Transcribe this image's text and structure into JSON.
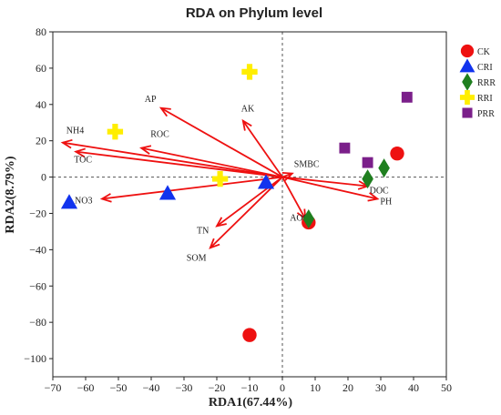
{
  "chart_data": {
    "type": "scatter",
    "title": "RDA on Phylum level",
    "xlabel": "RDA1(67.44%)",
    "ylabel": "RDA2(8.79%)",
    "xlim": [
      -70,
      50
    ],
    "ylim": [
      -110,
      80
    ],
    "xticks": [
      -70,
      -60,
      -50,
      -40,
      -30,
      -20,
      -10,
      0,
      10,
      20,
      30,
      40,
      50
    ],
    "yticks": [
      80,
      60,
      40,
      20,
      0,
      -20,
      -40,
      -60,
      -80,
      -100
    ],
    "reference_lines": {
      "x": 0,
      "y": 0,
      "style": "dashed"
    },
    "legend_position": "right",
    "series": [
      {
        "name": "CK",
        "marker": "circle",
        "color": "#ee1111",
        "points": [
          [
            35,
            13
          ],
          [
            8,
            -25
          ],
          [
            -10,
            -87
          ]
        ]
      },
      {
        "name": "CRI",
        "marker": "triangle",
        "color": "#1133ee",
        "points": [
          [
            -65,
            -14
          ],
          [
            -35,
            -9
          ],
          [
            -5,
            -3
          ]
        ]
      },
      {
        "name": "RRR",
        "marker": "diamond",
        "color": "#1f7f1f",
        "points": [
          [
            31,
            5
          ],
          [
            26,
            -1
          ],
          [
            8,
            -23
          ]
        ]
      },
      {
        "name": "RRI",
        "marker": "cross",
        "color": "#ffee00",
        "points": [
          [
            -10,
            58
          ],
          [
            -51,
            25
          ],
          [
            -19,
            -1
          ]
        ]
      },
      {
        "name": "PRR",
        "marker": "square",
        "color": "#7b1f8a",
        "points": [
          [
            38,
            44
          ],
          [
            19,
            16
          ],
          [
            26,
            8
          ]
        ]
      }
    ],
    "arrow_color": "#ee1111",
    "env_factors": [
      {
        "name": "NH4",
        "x": -67,
        "y": 19
      },
      {
        "name": "TOC",
        "x": -63,
        "y": 14
      },
      {
        "name": "AP",
        "x": -37,
        "y": 38
      },
      {
        "name": "ROC",
        "x": -43,
        "y": 16
      },
      {
        "name": "AK",
        "x": -12,
        "y": 31
      },
      {
        "name": "NO3",
        "x": -55,
        "y": -12
      },
      {
        "name": "TN",
        "x": -20,
        "y": -27
      },
      {
        "name": "SOM",
        "x": -22,
        "y": -39
      },
      {
        "name": "SMBC",
        "x": 3,
        "y": 2
      },
      {
        "name": "DOC",
        "x": 26,
        "y": -5
      },
      {
        "name": "AOC",
        "x": 7,
        "y": -23
      },
      {
        "name": "PH",
        "x": 29,
        "y": -12
      }
    ]
  }
}
